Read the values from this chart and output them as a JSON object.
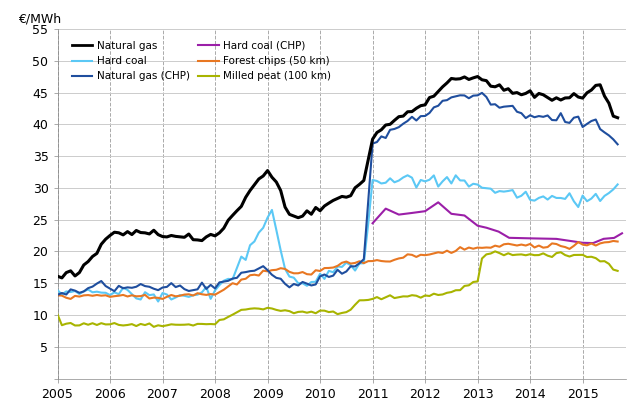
{
  "ylabel": "€/MWh",
  "ylim": [
    0,
    55
  ],
  "yticks": [
    0,
    5,
    10,
    15,
    20,
    25,
    30,
    35,
    40,
    45,
    50,
    55
  ],
  "xlim": [
    2005.0,
    2015.83
  ],
  "xticks": [
    2005,
    2006,
    2007,
    2008,
    2009,
    2010,
    2011,
    2012,
    2013,
    2014,
    2015
  ],
  "background_color": "#ffffff",
  "grid_color_h": "#cccccc",
  "grid_color_v": "#aaaaaa",
  "series": {
    "natural_gas": {
      "label": "Natural gas",
      "color": "#000000",
      "linewidth": 2.2
    },
    "natural_gas_chp": {
      "label": "Natural gas (CHP)",
      "color": "#1f4e9e",
      "linewidth": 1.5
    },
    "forest_chips": {
      "label": "Forest chips (50 km)",
      "color": "#e87722",
      "linewidth": 1.5
    },
    "hard_coal": {
      "label": "Hard coal",
      "color": "#5bc8f5",
      "linewidth": 1.5
    },
    "hard_coal_chp": {
      "label": "Hard coal (CHP)",
      "color": "#9b1fa8",
      "linewidth": 1.5
    },
    "milled_peat": {
      "label": "Milled peat (100 km)",
      "color": "#a8b400",
      "linewidth": 1.5
    }
  }
}
